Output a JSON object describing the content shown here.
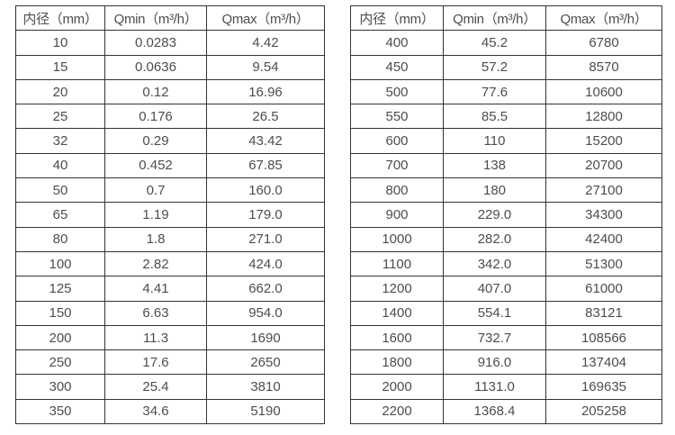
{
  "colors": {
    "border": "#333333",
    "text": "#4d4d4d",
    "background": "#ffffff"
  },
  "tables": [
    {
      "name": "small-diameter-spec-table",
      "headers": [
        "内径（mm）",
        "Qmin（m³/h）",
        "Qmax（m³/h）"
      ],
      "rows": [
        [
          "10",
          "0.0283",
          "4.42"
        ],
        [
          "15",
          "0.0636",
          "9.54"
        ],
        [
          "20",
          "0.12",
          "16.96"
        ],
        [
          "25",
          "0.176",
          "26.5"
        ],
        [
          "32",
          "0.29",
          "43.42"
        ],
        [
          "40",
          "0.452",
          "67.85"
        ],
        [
          "50",
          "0.7",
          "160.0"
        ],
        [
          "65",
          "1.19",
          "179.0"
        ],
        [
          "80",
          "1.8",
          "271.0"
        ],
        [
          "100",
          "2.82",
          "424.0"
        ],
        [
          "125",
          "4.41",
          "662.0"
        ],
        [
          "150",
          "6.63",
          "954.0"
        ],
        [
          "200",
          "11.3",
          "1690"
        ],
        [
          "250",
          "17.6",
          "2650"
        ],
        [
          "300",
          "25.4",
          "3810"
        ],
        [
          "350",
          "34.6",
          "5190"
        ]
      ]
    },
    {
      "name": "large-diameter-spec-table",
      "headers": [
        "内径（mm）",
        "Qmin（m³/h）",
        "Qmax（m³/h）"
      ],
      "rows": [
        [
          "400",
          "45.2",
          "6780"
        ],
        [
          "450",
          "57.2",
          "8570"
        ],
        [
          "500",
          "77.6",
          "10600"
        ],
        [
          "550",
          "85.5",
          "12800"
        ],
        [
          "600",
          "110",
          "15200"
        ],
        [
          "700",
          "138",
          "20700"
        ],
        [
          "800",
          "180",
          "27100"
        ],
        [
          "900",
          "229.0",
          "34300"
        ],
        [
          "1000",
          "282.0",
          "42400"
        ],
        [
          "1100",
          "342.0",
          "51300"
        ],
        [
          "1200",
          "407.0",
          "61000"
        ],
        [
          "1400",
          "554.1",
          "83121"
        ],
        [
          "1600",
          "732.7",
          "108566"
        ],
        [
          "1800",
          "916.0",
          "137404"
        ],
        [
          "2000",
          "1131.0",
          "169635"
        ],
        [
          "2200",
          "1368.4",
          "205258"
        ]
      ]
    }
  ]
}
